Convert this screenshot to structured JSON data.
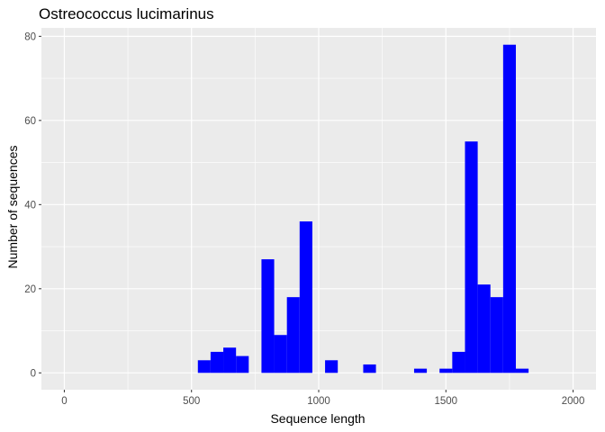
{
  "chart_data": {
    "type": "bar",
    "subtype": "histogram",
    "title": "Ostreococcus lucimarinus",
    "xlabel": "Sequence length",
    "ylabel": "Number of sequences",
    "xlim": [
      -90,
      2090
    ],
    "ylim": [
      -4,
      82
    ],
    "x_ticks": [
      0,
      500,
      1000,
      1500,
      2000
    ],
    "y_ticks": [
      0,
      20,
      40,
      60,
      80
    ],
    "bin_width": 50,
    "bar_color": "#0000ff",
    "panel_background": "#ebebeb",
    "grid": true,
    "bins": [
      {
        "start": 525,
        "end": 575,
        "count": 3
      },
      {
        "start": 575,
        "end": 625,
        "count": 5
      },
      {
        "start": 625,
        "end": 675,
        "count": 6
      },
      {
        "start": 675,
        "end": 725,
        "count": 4
      },
      {
        "start": 775,
        "end": 825,
        "count": 27
      },
      {
        "start": 825,
        "end": 875,
        "count": 9
      },
      {
        "start": 875,
        "end": 925,
        "count": 18
      },
      {
        "start": 925,
        "end": 975,
        "count": 36
      },
      {
        "start": 1025,
        "end": 1075,
        "count": 3
      },
      {
        "start": 1175,
        "end": 1225,
        "count": 2
      },
      {
        "start": 1375,
        "end": 1425,
        "count": 1
      },
      {
        "start": 1475,
        "end": 1525,
        "count": 1
      },
      {
        "start": 1525,
        "end": 1575,
        "count": 5
      },
      {
        "start": 1575,
        "end": 1625,
        "count": 55
      },
      {
        "start": 1625,
        "end": 1675,
        "count": 21
      },
      {
        "start": 1675,
        "end": 1725,
        "count": 18
      },
      {
        "start": 1725,
        "end": 1775,
        "count": 78
      },
      {
        "start": 1775,
        "end": 1825,
        "count": 1
      }
    ]
  }
}
